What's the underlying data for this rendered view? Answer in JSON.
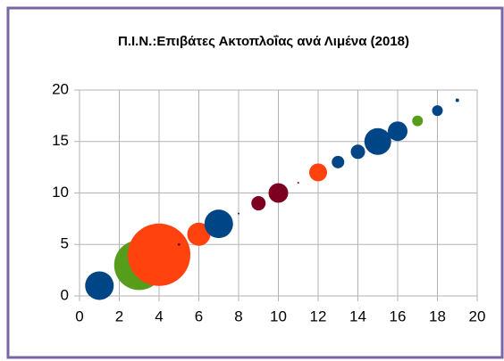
{
  "chart_data": {
    "type": "bubble",
    "title": "Π.Ι.Ν.:Επιβάτες Ακτοπλοΐας ανά Λιμένα (2018)",
    "series": [
      {
        "x": [
          1,
          3,
          4,
          5,
          6,
          7,
          8,
          9,
          10,
          11,
          12,
          13,
          14,
          15,
          16,
          17,
          18,
          19
        ],
        "values": [
          1,
          3,
          4,
          5,
          6,
          7,
          8,
          9,
          10,
          11,
          12,
          13,
          14,
          15,
          16,
          17,
          18,
          19
        ],
        "sizes": [
          256,
          784,
          1225,
          2,
          169,
          256,
          1,
          64,
          121,
          1,
          100,
          49,
          64,
          225,
          121,
          36,
          36,
          4
        ],
        "colors": [
          "#004586",
          "#579d1c",
          "#ff420e",
          "#7e0021",
          "#ff420e",
          "#004586",
          "#7e0021",
          "#7e0021",
          "#7e0021",
          "#7e0021",
          "#ff420e",
          "#004586",
          "#004586",
          "#004586",
          "#004586",
          "#579d1c",
          "#004586",
          "#004586"
        ]
      }
    ],
    "xlim": [
      0,
      20
    ],
    "xticks": [
      0,
      2,
      4,
      6,
      8,
      10,
      12,
      14,
      16,
      18,
      20
    ],
    "ylim": [
      0,
      20
    ],
    "yticks": [
      0,
      5,
      10,
      15,
      20
    ],
    "grid": true,
    "frame_color": "#7a66a6"
  }
}
